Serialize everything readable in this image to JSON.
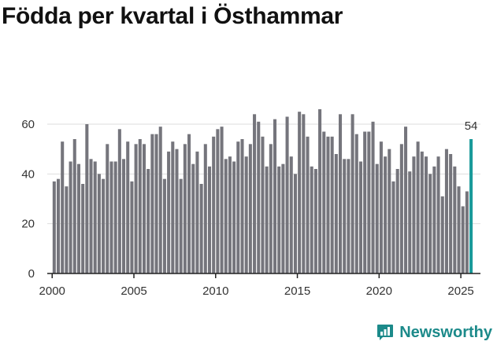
{
  "title": "Födda per kvartal i Östhammar",
  "brand": {
    "name": "Newsworthy"
  },
  "colors": {
    "bar": "#75757c",
    "highlight": "#1a9a9a",
    "brand": "#1c8a8a"
  },
  "chart_data": {
    "type": "bar",
    "title": "Födda per kvartal i Östhammar",
    "xlabel": "",
    "ylabel": "",
    "ylim": [
      0,
      72
    ],
    "xlim": [
      1999.7,
      2026.2
    ],
    "yticks": [
      "0",
      "20",
      "40",
      "60"
    ],
    "xticks": [
      "2000",
      "2005",
      "2010",
      "2015",
      "2020",
      "2025"
    ],
    "start": {
      "year": 2000,
      "quarter": 1
    },
    "values": [
      37,
      38,
      53,
      35,
      45,
      54,
      44,
      36,
      60,
      46,
      45,
      40,
      38,
      52,
      45,
      45,
      58,
      46,
      53,
      37,
      52,
      54,
      52,
      42,
      56,
      56,
      59,
      38,
      49,
      53,
      50,
      38,
      52,
      56,
      44,
      49,
      36,
      52,
      43,
      55,
      58,
      59,
      46,
      47,
      45,
      53,
      54,
      47,
      52,
      64,
      61,
      55,
      43,
      52,
      62,
      43,
      44,
      63,
      47,
      40,
      65,
      64,
      55,
      43,
      42,
      66,
      57,
      55,
      55,
      48,
      64,
      46,
      46,
      64,
      56,
      45,
      57,
      57,
      61,
      44,
      53,
      47,
      50,
      37,
      42,
      52,
      59,
      41,
      47,
      53,
      49,
      47,
      40,
      43,
      47,
      31,
      50,
      48,
      43,
      35,
      27,
      33,
      54
    ],
    "highlight": {
      "label": "54",
      "value": 54
    }
  }
}
